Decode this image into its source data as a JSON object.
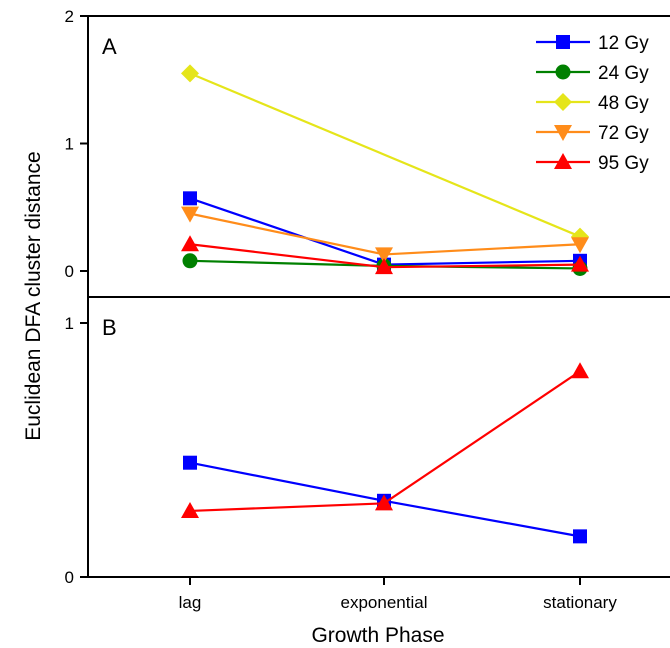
{
  "chart_data": {
    "type": "line",
    "xlabel": "Growth Phase",
    "ylabel": "Euclidean DFA cluster distance",
    "categories": [
      "lag",
      "exponential",
      "stationary"
    ],
    "panels": [
      {
        "label": "A",
        "ylim": [
          -0.15,
          2
        ],
        "yticks": [
          "0",
          "1",
          "2"
        ],
        "series": [
          {
            "name": "12 Gy",
            "color": "#0000ff",
            "marker": "square",
            "values": [
              0.57,
              0.05,
              0.08
            ]
          },
          {
            "name": "24 Gy",
            "color": "#008000",
            "marker": "circle",
            "values": [
              0.08,
              0.04,
              0.02
            ]
          },
          {
            "name": "48 Gy",
            "color": "#e5e51a",
            "marker": "diamond",
            "values": [
              1.55,
              null,
              0.27
            ]
          },
          {
            "name": "72 Gy",
            "color": "#ff8c1a",
            "marker": "triangle-down",
            "values": [
              0.45,
              0.13,
              0.21
            ]
          },
          {
            "name": "95 Gy",
            "color": "#ff0000",
            "marker": "triangle-up",
            "values": [
              0.21,
              0.03,
              0.05
            ]
          }
        ]
      },
      {
        "label": "B",
        "ylim": [
          0,
          1.1
        ],
        "yticks": [
          "0",
          "1"
        ],
        "series": [
          {
            "color": "#0000ff",
            "marker": "square",
            "values": [
              0.45,
              0.3,
              0.16
            ]
          },
          {
            "color": "#ff0000",
            "marker": "triangle-up",
            "values": [
              0.26,
              0.29,
              0.81
            ]
          }
        ]
      }
    ],
    "legend": {
      "placement": "top-right",
      "panel": "A"
    }
  }
}
